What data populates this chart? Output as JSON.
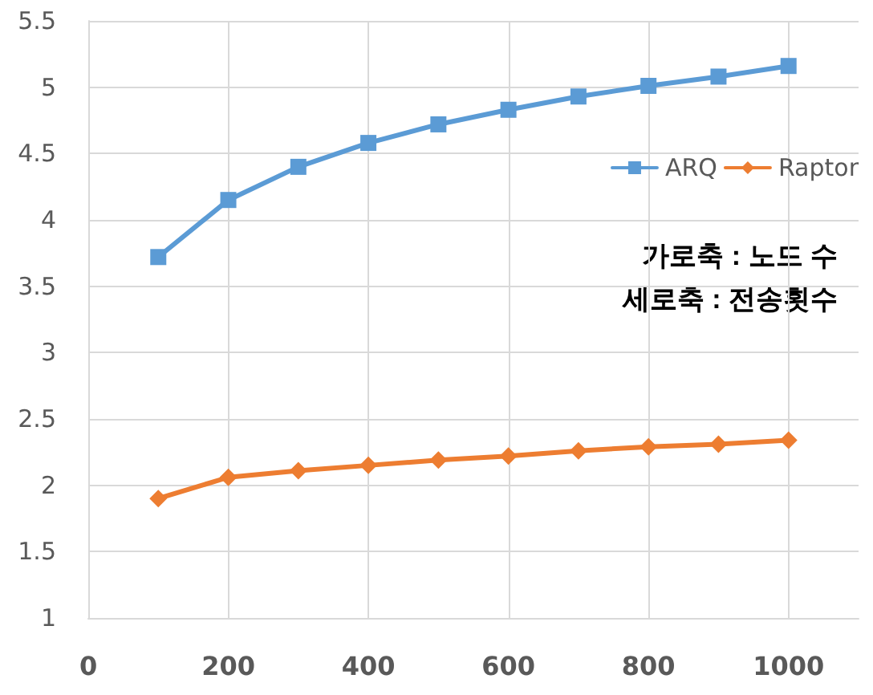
{
  "chart_data": {
    "type": "line",
    "x": [
      100,
      200,
      300,
      400,
      500,
      600,
      700,
      800,
      900,
      1000
    ],
    "series": [
      {
        "name": "ARQ",
        "color": "#5b9bd5",
        "marker": "square",
        "values": [
          3.72,
          4.15,
          4.4,
          4.58,
          4.72,
          4.83,
          4.93,
          5.01,
          5.08,
          5.16
        ]
      },
      {
        "name": "Raptor",
        "color": "#ed7d31",
        "marker": "diamond",
        "values": [
          1.9,
          2.06,
          2.11,
          2.15,
          2.19,
          2.22,
          2.26,
          2.29,
          2.31,
          2.34
        ]
      }
    ],
    "xlim": [
      0,
      1100
    ],
    "xticks": [
      0,
      200,
      400,
      600,
      800,
      1000
    ],
    "ylim": [
      1,
      5.5
    ],
    "yticks": [
      1,
      1.5,
      2,
      2.5,
      3,
      3.5,
      4,
      4.5,
      5,
      5.5
    ],
    "grid": true,
    "legend": "right",
    "line_style": "solid",
    "annotations": [
      "가로축 : 노드 수",
      "세로축 : 전송횟수"
    ]
  }
}
